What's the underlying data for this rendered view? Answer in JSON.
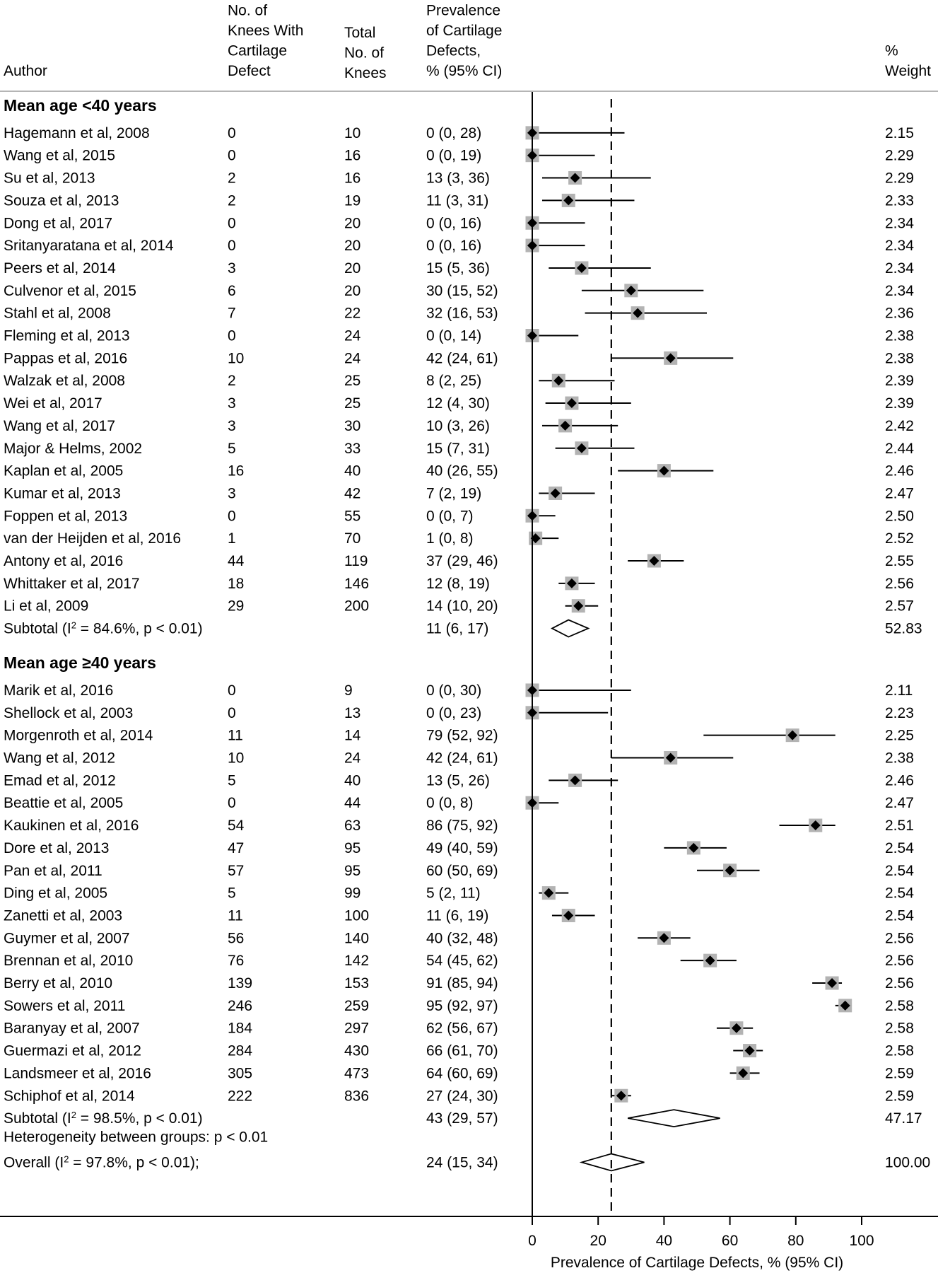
{
  "headers": {
    "author": "Author",
    "defect": [
      "No. of",
      "Knees With",
      "Cartilage",
      "Defect"
    ],
    "total": [
      "Total",
      "No. of",
      "Knees"
    ],
    "prev": [
      "Prevalence",
      "of Cartilage",
      "Defects,",
      "% (95% CI)"
    ],
    "weight": [
      "%",
      "Weight"
    ]
  },
  "chart_data": {
    "type": "forest",
    "xlabel": "Prevalence of Cartilage Defects, % (95% CI)",
    "xlim": [
      0,
      100
    ],
    "xticks": [
      0,
      20,
      40,
      60,
      80,
      100
    ],
    "reference_line": 24,
    "groups": [
      {
        "label": "Mean age <40 years",
        "studies": [
          {
            "author": "Hagemann et al, 2008",
            "defect": "0",
            "total": "10",
            "ci_text": "0 (0, 28)",
            "est": 0,
            "lo": 0,
            "hi": 28,
            "weight": "2.15"
          },
          {
            "author": "Wang et al, 2015",
            "defect": "0",
            "total": "16",
            "ci_text": "0 (0, 19)",
            "est": 0,
            "lo": 0,
            "hi": 19,
            "weight": "2.29"
          },
          {
            "author": "Su et al, 2013",
            "defect": "2",
            "total": "16",
            "ci_text": "13 (3, 36)",
            "est": 13,
            "lo": 3,
            "hi": 36,
            "weight": "2.29"
          },
          {
            "author": "Souza et al, 2013",
            "defect": "2",
            "total": "19",
            "ci_text": "11 (3, 31)",
            "est": 11,
            "lo": 3,
            "hi": 31,
            "weight": "2.33"
          },
          {
            "author": "Dong et al, 2017",
            "defect": "0",
            "total": "20",
            "ci_text": "0 (0, 16)",
            "est": 0,
            "lo": 0,
            "hi": 16,
            "weight": "2.34"
          },
          {
            "author": "Sritanyaratana et al, 2014",
            "defect": "0",
            "total": "20",
            "ci_text": "0 (0, 16)",
            "est": 0,
            "lo": 0,
            "hi": 16,
            "weight": "2.34"
          },
          {
            "author": "Peers et al, 2014",
            "defect": "3",
            "total": "20",
            "ci_text": "15 (5, 36)",
            "est": 15,
            "lo": 5,
            "hi": 36,
            "weight": "2.34"
          },
          {
            "author": "Culvenor et al, 2015",
            "defect": "6",
            "total": "20",
            "ci_text": "30 (15, 52)",
            "est": 30,
            "lo": 15,
            "hi": 52,
            "weight": "2.34"
          },
          {
            "author": "Stahl et al, 2008",
            "defect": "7",
            "total": "22",
            "ci_text": "32 (16, 53)",
            "est": 32,
            "lo": 16,
            "hi": 53,
            "weight": "2.36"
          },
          {
            "author": "Fleming et al, 2013",
            "defect": "0",
            "total": "24",
            "ci_text": "0 (0, 14)",
            "est": 0,
            "lo": 0,
            "hi": 14,
            "weight": "2.38"
          },
          {
            "author": "Pappas et al, 2016",
            "defect": "10",
            "total": "24",
            "ci_text": "42 (24, 61)",
            "est": 42,
            "lo": 24,
            "hi": 61,
            "weight": "2.38"
          },
          {
            "author": "Walzak et al, 2008",
            "defect": "2",
            "total": "25",
            "ci_text": "8 (2, 25)",
            "est": 8,
            "lo": 2,
            "hi": 25,
            "weight": "2.39"
          },
          {
            "author": "Wei et al, 2017",
            "defect": "3",
            "total": "25",
            "ci_text": "12 (4, 30)",
            "est": 12,
            "lo": 4,
            "hi": 30,
            "weight": "2.39"
          },
          {
            "author": "Wang et al, 2017",
            "defect": "3",
            "total": "30",
            "ci_text": "10 (3, 26)",
            "est": 10,
            "lo": 3,
            "hi": 26,
            "weight": "2.42"
          },
          {
            "author": "Major & Helms, 2002",
            "defect": "5",
            "total": "33",
            "ci_text": "15 (7, 31)",
            "est": 15,
            "lo": 7,
            "hi": 31,
            "weight": "2.44"
          },
          {
            "author": "Kaplan et al, 2005",
            "defect": "16",
            "total": "40",
            "ci_text": "40 (26, 55)",
            "est": 40,
            "lo": 26,
            "hi": 55,
            "weight": "2.46"
          },
          {
            "author": "Kumar et al, 2013",
            "defect": "3",
            "total": "42",
            "ci_text": "7 (2, 19)",
            "est": 7,
            "lo": 2,
            "hi": 19,
            "weight": "2.47"
          },
          {
            "author": "Foppen et al, 2013",
            "defect": "0",
            "total": "55",
            "ci_text": "0 (0, 7)",
            "est": 0,
            "lo": 0,
            "hi": 7,
            "weight": "2.50"
          },
          {
            "author": "van der Heijden et al, 2016",
            "defect": "1",
            "total": "70",
            "ci_text": "1 (0, 8)",
            "est": 1,
            "lo": 0,
            "hi": 8,
            "weight": "2.52"
          },
          {
            "author": "Antony et al, 2016",
            "defect": "44",
            "total": "119",
            "ci_text": "37 (29, 46)",
            "est": 37,
            "lo": 29,
            "hi": 46,
            "weight": "2.55"
          },
          {
            "author": "Whittaker et al, 2017",
            "defect": "18",
            "total": "146",
            "ci_text": "12 (8, 19)",
            "est": 12,
            "lo": 8,
            "hi": 19,
            "weight": "2.56"
          },
          {
            "author": "Li et al, 2009",
            "defect": "29",
            "total": "200",
            "ci_text": "14 (10, 20)",
            "est": 14,
            "lo": 10,
            "hi": 20,
            "weight": "2.57"
          }
        ],
        "subtotal": {
          "label_pre": "Subtotal  (I",
          "label_sup": "2",
          "label_post": " = 84.6%, p < 0.01)",
          "ci_text": "11 (6, 17)",
          "est": 11,
          "lo": 6,
          "hi": 17,
          "weight": "52.83"
        }
      },
      {
        "label": "Mean age ≥40 years",
        "studies": [
          {
            "author": "Marik et al, 2016",
            "defect": "0",
            "total": "9",
            "ci_text": "0 (0, 30)",
            "est": 0,
            "lo": 0,
            "hi": 30,
            "weight": "2.11"
          },
          {
            "author": "Shellock et al, 2003",
            "defect": "0",
            "total": "13",
            "ci_text": "0 (0, 23)",
            "est": 0,
            "lo": 0,
            "hi": 23,
            "weight": "2.23"
          },
          {
            "author": "Morgenroth et al, 2014",
            "defect": "11",
            "total": "14",
            "ci_text": "79 (52, 92)",
            "est": 79,
            "lo": 52,
            "hi": 92,
            "weight": "2.25"
          },
          {
            "author": "Wang et al, 2012",
            "defect": "10",
            "total": "24",
            "ci_text": "42 (24, 61)",
            "est": 42,
            "lo": 24,
            "hi": 61,
            "weight": "2.38"
          },
          {
            "author": "Emad et al, 2012",
            "defect": "5",
            "total": "40",
            "ci_text": "13 (5, 26)",
            "est": 13,
            "lo": 5,
            "hi": 26,
            "weight": "2.46"
          },
          {
            "author": "Beattie et al, 2005",
            "defect": "0",
            "total": "44",
            "ci_text": "0 (0, 8)",
            "est": 0,
            "lo": 0,
            "hi": 8,
            "weight": "2.47"
          },
          {
            "author": "Kaukinen et al, 2016",
            "defect": "54",
            "total": "63",
            "ci_text": "86 (75, 92)",
            "est": 86,
            "lo": 75,
            "hi": 92,
            "weight": "2.51"
          },
          {
            "author": "Dore et al, 2013",
            "defect": "47",
            "total": "95",
            "ci_text": "49 (40, 59)",
            "est": 49,
            "lo": 40,
            "hi": 59,
            "weight": "2.54"
          },
          {
            "author": "Pan et al, 2011",
            "defect": "57",
            "total": "95",
            "ci_text": "60 (50, 69)",
            "est": 60,
            "lo": 50,
            "hi": 69,
            "weight": "2.54"
          },
          {
            "author": "Ding et al, 2005",
            "defect": "5",
            "total": "99",
            "ci_text": "5 (2, 11)",
            "est": 5,
            "lo": 2,
            "hi": 11,
            "weight": "2.54"
          },
          {
            "author": "Zanetti et al, 2003",
            "defect": "11",
            "total": "100",
            "ci_text": "11 (6, 19)",
            "est": 11,
            "lo": 6,
            "hi": 19,
            "weight": "2.54"
          },
          {
            "author": "Guymer et al, 2007",
            "defect": "56",
            "total": "140",
            "ci_text": "40 (32, 48)",
            "est": 40,
            "lo": 32,
            "hi": 48,
            "weight": "2.56"
          },
          {
            "author": "Brennan et al, 2010",
            "defect": "76",
            "total": "142",
            "ci_text": "54 (45, 62)",
            "est": 54,
            "lo": 45,
            "hi": 62,
            "weight": "2.56"
          },
          {
            "author": "Berry et al, 2010",
            "defect": "139",
            "total": "153",
            "ci_text": "91 (85, 94)",
            "est": 91,
            "lo": 85,
            "hi": 94,
            "weight": "2.56"
          },
          {
            "author": "Sowers et al, 2011",
            "defect": "246",
            "total": "259",
            "ci_text": "95 (92, 97)",
            "est": 95,
            "lo": 92,
            "hi": 97,
            "weight": "2.58"
          },
          {
            "author": "Baranyay et al, 2007",
            "defect": "184",
            "total": "297",
            "ci_text": "62 (56, 67)",
            "est": 62,
            "lo": 56,
            "hi": 67,
            "weight": "2.58"
          },
          {
            "author": "Guermazi et al, 2012",
            "defect": "284",
            "total": "430",
            "ci_text": "66 (61, 70)",
            "est": 66,
            "lo": 61,
            "hi": 70,
            "weight": "2.58"
          },
          {
            "author": "Landsmeer et al, 2016",
            "defect": "305",
            "total": "473",
            "ci_text": "64 (60, 69)",
            "est": 64,
            "lo": 60,
            "hi": 69,
            "weight": "2.59"
          },
          {
            "author": "Schiphof et al, 2014",
            "defect": "222",
            "total": "836",
            "ci_text": "27 (24, 30)",
            "est": 27,
            "lo": 24,
            "hi": 30,
            "weight": "2.59"
          }
        ],
        "subtotal": {
          "label_pre": "Subtotal  (I",
          "label_sup": "2",
          "label_post": " = 98.5%, p < 0.01)",
          "ci_text": "43 (29, 57)",
          "est": 43,
          "lo": 29,
          "hi": 57,
          "weight": "47.17"
        }
      }
    ],
    "heterogeneity": "Heterogeneity between groups: p < 0.01",
    "overall": {
      "label_pre": "Overall  (I",
      "label_sup": "2",
      "label_post": " = 97.8%, p < 0.01);",
      "ci_text": "24 (15, 34)",
      "est": 24,
      "lo": 15,
      "hi": 34,
      "weight": "100.00"
    }
  }
}
